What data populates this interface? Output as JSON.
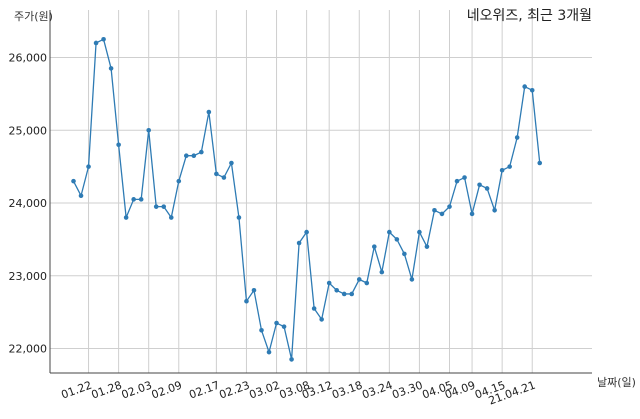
{
  "chart_data": {
    "type": "line",
    "title": "네오위즈, 최근 3개월",
    "ylabel": "주가(원)",
    "xlabel": "날짜(일)",
    "ylim": [
      21600,
      26600
    ],
    "yticks": [
      22000,
      23000,
      24000,
      25000,
      26000
    ],
    "ytick_labels": [
      "22,000",
      "23,000",
      "24,000",
      "25,000",
      "26,000"
    ],
    "xtick_labels": [
      "01.22",
      "01.28",
      "02.03",
      "02.09",
      "02.17",
      "02.23",
      "03.02",
      "03.08",
      "03.12",
      "03.18",
      "03.24",
      "03.30",
      "04.05",
      "04.09",
      "04.15",
      "21.04.21"
    ],
    "xtick_index": [
      2,
      6,
      10,
      14,
      19,
      23,
      27,
      31,
      34,
      38,
      42,
      46,
      50,
      53,
      57,
      61
    ],
    "grid": true,
    "color": "#2e7bb4",
    "series": [
      {
        "values": [
          24300,
          24100,
          24500,
          26200,
          26250,
          25850,
          24800,
          23800,
          24050,
          24050,
          25000,
          23950,
          23950,
          23800,
          24300,
          24650,
          24650,
          24700,
          25250,
          24400,
          24350,
          24550,
          23800,
          22650,
          22800,
          22250,
          21950,
          22350,
          22300,
          21850,
          23450,
          23600,
          22550,
          22400,
          22900,
          22800,
          22750,
          22750,
          22950,
          22900,
          23400,
          23050,
          23600,
          23500,
          23300,
          22950,
          23600,
          23400,
          23900,
          23850,
          23950,
          24300,
          24350,
          23850,
          24250,
          24200,
          23900,
          24450,
          24500,
          24900,
          25600,
          25550,
          24550
        ]
      }
    ]
  }
}
